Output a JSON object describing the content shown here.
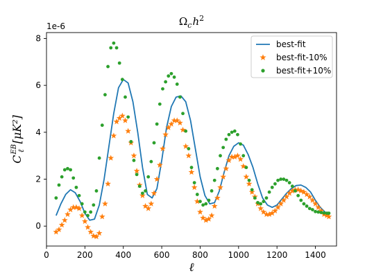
{
  "chart_data": {
    "type": "line",
    "title": "Ωch²",
    "title_parts": {
      "base": "Ω",
      "sub": "c",
      "mid": "h",
      "sup": "2"
    },
    "xlabel": "ℓ",
    "ylabel_parts": {
      "base": "C",
      "sub": "ℓ",
      "sup": "EB",
      "unit": "[μK²]"
    },
    "y_offset_text": "1e-6",
    "xlim": [
      0,
      1510
    ],
    "ylim": [
      -0.85,
      8.25
    ],
    "x_ticks": [
      0,
      200,
      400,
      600,
      800,
      1000,
      1200,
      1400
    ],
    "x_tick_labels": [
      "0",
      "200",
      "400",
      "600",
      "800",
      "1000",
      "1200",
      "1400"
    ],
    "y_ticks": [
      0,
      2,
      4,
      6,
      8
    ],
    "y_tick_labels": [
      "0",
      "2",
      "4",
      "6",
      "8"
    ],
    "legend_position": "top-right",
    "grid": false,
    "series": [
      {
        "name": "best-fit",
        "kind": "line",
        "color": "#1f77b4",
        "x": [
          50,
          75,
          100,
          125,
          150,
          175,
          200,
          225,
          250,
          275,
          300,
          325,
          350,
          375,
          400,
          425,
          450,
          475,
          500,
          525,
          550,
          575,
          600,
          625,
          650,
          675,
          700,
          725,
          750,
          775,
          800,
          825,
          850,
          875,
          900,
          925,
          950,
          975,
          1000,
          1025,
          1050,
          1075,
          1100,
          1125,
          1150,
          1175,
          1200,
          1225,
          1250,
          1275,
          1300,
          1325,
          1350,
          1375,
          1400,
          1425,
          1450,
          1470
        ],
        "y": [
          0.45,
          0.95,
          1.35,
          1.55,
          1.42,
          1.05,
          0.55,
          0.25,
          0.3,
          0.9,
          2.0,
          3.4,
          4.8,
          5.9,
          6.25,
          6.1,
          5.3,
          4.0,
          2.5,
          1.35,
          1.2,
          1.6,
          2.8,
          4.2,
          5.1,
          5.5,
          5.55,
          5.3,
          4.5,
          3.3,
          2.1,
          1.3,
          0.95,
          1.0,
          1.5,
          2.3,
          3.0,
          3.4,
          3.55,
          3.45,
          3.05,
          2.5,
          1.8,
          1.2,
          0.9,
          0.8,
          0.9,
          1.15,
          1.4,
          1.6,
          1.73,
          1.75,
          1.65,
          1.45,
          1.1,
          0.8,
          0.6,
          0.5
        ]
      },
      {
        "name": "best-fit-10%",
        "kind": "star",
        "color": "#ff7f0e",
        "x": [
          50,
          65,
          80,
          95,
          110,
          125,
          140,
          155,
          170,
          185,
          200,
          215,
          230,
          245,
          260,
          275,
          290,
          305,
          320,
          335,
          350,
          365,
          380,
          395,
          410,
          425,
          440,
          455,
          470,
          485,
          500,
          515,
          530,
          545,
          560,
          575,
          590,
          605,
          620,
          635,
          650,
          665,
          680,
          695,
          710,
          725,
          740,
          755,
          770,
          785,
          800,
          815,
          830,
          845,
          860,
          875,
          890,
          905,
          920,
          935,
          950,
          965,
          980,
          995,
          1010,
          1025,
          1040,
          1055,
          1070,
          1085,
          1100,
          1115,
          1130,
          1145,
          1160,
          1175,
          1190,
          1205,
          1220,
          1235,
          1250,
          1265,
          1280,
          1295,
          1310,
          1325,
          1340,
          1355,
          1370,
          1385,
          1400,
          1415,
          1430,
          1445,
          1460,
          1470
        ],
        "y": [
          -0.25,
          -0.15,
          0.05,
          0.25,
          0.5,
          0.7,
          0.8,
          0.8,
          0.75,
          0.45,
          0.2,
          -0.05,
          -0.25,
          -0.42,
          -0.45,
          -0.3,
          0.4,
          0.95,
          1.8,
          2.9,
          3.85,
          4.45,
          4.6,
          4.7,
          4.5,
          4.05,
          3.55,
          3.0,
          2.35,
          1.75,
          1.3,
          0.85,
          0.75,
          0.95,
          1.4,
          2.0,
          2.6,
          3.3,
          3.9,
          4.2,
          4.35,
          4.5,
          4.5,
          4.4,
          4.1,
          3.4,
          3.0,
          2.3,
          1.65,
          1.05,
          0.6,
          0.35,
          0.25,
          0.3,
          0.45,
          0.85,
          1.2,
          1.65,
          2.1,
          2.45,
          2.8,
          2.95,
          2.95,
          3.0,
          2.85,
          2.55,
          2.1,
          1.8,
          1.45,
          1.25,
          0.95,
          0.75,
          0.6,
          0.5,
          0.5,
          0.55,
          0.65,
          0.8,
          0.95,
          1.1,
          1.25,
          1.4,
          1.5,
          1.55,
          1.55,
          1.5,
          1.45,
          1.35,
          1.25,
          1.1,
          0.95,
          0.8,
          0.65,
          0.5,
          0.45,
          0.4
        ]
      },
      {
        "name": "best-fit+10%",
        "kind": "dot",
        "color": "#2ca02c",
        "x": [
          50,
          65,
          80,
          95,
          110,
          125,
          140,
          155,
          170,
          185,
          200,
          215,
          230,
          245,
          260,
          275,
          290,
          305,
          320,
          335,
          350,
          365,
          380,
          395,
          410,
          425,
          440,
          455,
          470,
          485,
          500,
          515,
          530,
          545,
          560,
          575,
          590,
          605,
          620,
          635,
          650,
          665,
          680,
          695,
          710,
          725,
          740,
          755,
          770,
          785,
          800,
          815,
          830,
          845,
          860,
          875,
          890,
          905,
          920,
          935,
          950,
          965,
          980,
          995,
          1010,
          1025,
          1040,
          1055,
          1070,
          1085,
          1100,
          1115,
          1130,
          1145,
          1160,
          1175,
          1190,
          1205,
          1220,
          1235,
          1250,
          1265,
          1280,
          1295,
          1310,
          1325,
          1340,
          1355,
          1370,
          1385,
          1400,
          1415,
          1430,
          1445,
          1460,
          1470
        ],
        "y": [
          1.2,
          1.75,
          2.1,
          2.4,
          2.45,
          2.4,
          2.05,
          1.65,
          1.3,
          0.95,
          0.6,
          0.45,
          0.6,
          0.9,
          1.5,
          2.9,
          4.3,
          5.6,
          6.8,
          7.6,
          7.8,
          7.6,
          6.95,
          6.25,
          5.5,
          4.65,
          3.6,
          2.8,
          2.2,
          1.7,
          1.4,
          1.5,
          2.1,
          2.75,
          3.55,
          4.35,
          5.2,
          5.85,
          6.15,
          6.4,
          6.5,
          6.35,
          6.05,
          5.5,
          4.8,
          4.05,
          3.3,
          2.5,
          1.85,
          1.35,
          1.05,
          0.9,
          0.95,
          1.1,
          1.5,
          1.95,
          2.45,
          3.0,
          3.35,
          3.7,
          3.9,
          4.0,
          4.05,
          3.9,
          3.5,
          3.0,
          2.5,
          1.95,
          1.55,
          1.2,
          1.0,
          0.95,
          1.05,
          1.2,
          1.45,
          1.65,
          1.8,
          1.95,
          2.0,
          2.0,
          1.95,
          1.85,
          1.7,
          1.5,
          1.3,
          1.1,
          0.95,
          0.85,
          0.75,
          0.7,
          0.62,
          0.6,
          0.58,
          0.56,
          0.55,
          0.55
        ]
      }
    ]
  }
}
